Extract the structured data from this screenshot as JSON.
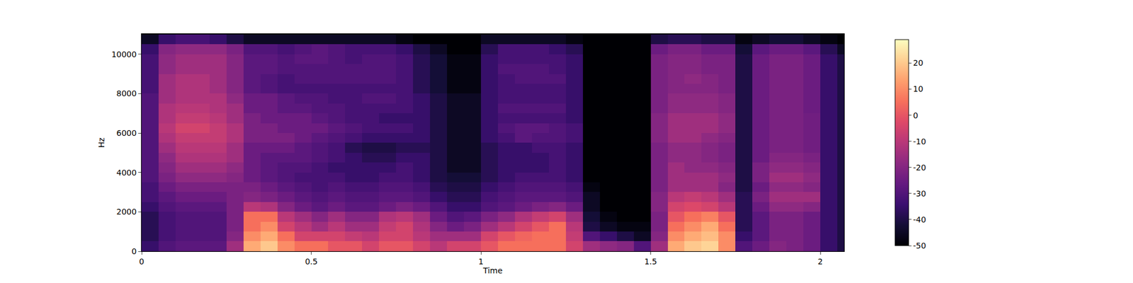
{
  "chart_data": {
    "type": "heatmap",
    "x_label": "Time",
    "y_label": "Hz",
    "xlim": [
      0,
      2.07
    ],
    "ylim": [
      0,
      11025
    ],
    "xticks": [
      0,
      0.5,
      1,
      1.5,
      2
    ],
    "yticks": [
      0,
      2000,
      4000,
      6000,
      8000,
      10000
    ],
    "colorbar": {
      "range": [
        -50,
        29
      ],
      "ticks": [
        -50,
        -40,
        -30,
        -20,
        -10,
        0,
        10,
        20
      ]
    },
    "x": [
      0.025,
      0.075,
      0.125,
      0.175,
      0.225,
      0.275,
      0.325,
      0.375,
      0.425,
      0.475,
      0.525,
      0.575,
      0.625,
      0.675,
      0.725,
      0.775,
      0.825,
      0.875,
      0.925,
      0.975,
      1.025,
      1.075,
      1.125,
      1.175,
      1.225,
      1.275,
      1.325,
      1.375,
      1.425,
      1.475,
      1.525,
      1.575,
      1.625,
      1.675,
      1.725,
      1.775,
      1.825,
      1.875,
      1.925,
      1.975,
      2.025,
      2.075
    ],
    "y": [
      250,
      750,
      1250,
      1750,
      2250,
      2750,
      3250,
      3750,
      4250,
      4750,
      5250,
      5750,
      6250,
      6750,
      7250,
      7750,
      8250,
      8750,
      9250,
      9750,
      10250,
      10750
    ],
    "z": [
      [
        -35,
        -30,
        -28,
        -28,
        -28,
        -15,
        15,
        20,
        10,
        5,
        5,
        0,
        0,
        -5,
        0,
        0,
        -5,
        -10,
        -5,
        -5,
        0,
        5,
        5,
        5,
        5,
        -5,
        -15,
        -18,
        -20,
        -30,
        -15,
        15,
        20,
        22,
        10,
        -30,
        -25,
        -20,
        -22,
        -25,
        -35,
        -40
      ],
      [
        -38,
        -32,
        -30,
        -30,
        -30,
        -20,
        10,
        15,
        5,
        -5,
        -5,
        -5,
        -8,
        -10,
        -5,
        -5,
        -10,
        -15,
        -15,
        -15,
        -5,
        0,
        3,
        5,
        5,
        -8,
        -30,
        -35,
        -40,
        -45,
        -20,
        10,
        15,
        18,
        10,
        -35,
        -28,
        -22,
        -22,
        -25,
        -35,
        -40
      ],
      [
        -38,
        -32,
        -30,
        -30,
        -30,
        -22,
        5,
        10,
        -5,
        -10,
        -15,
        -10,
        -15,
        -15,
        -8,
        -5,
        -12,
        -20,
        -25,
        -22,
        -15,
        -10,
        -5,
        0,
        5,
        -10,
        -40,
        -45,
        -48,
        -48,
        -22,
        5,
        10,
        15,
        5,
        -38,
        -28,
        -22,
        -22,
        -25,
        -35,
        -40
      ],
      [
        -38,
        -32,
        -30,
        -30,
        -30,
        -22,
        5,
        5,
        -10,
        -15,
        -20,
        -15,
        -20,
        -20,
        -12,
        -10,
        -15,
        -25,
        -30,
        -28,
        -22,
        -18,
        -12,
        -8,
        -5,
        -15,
        -42,
        -48,
        -50,
        -50,
        -22,
        0,
        5,
        8,
        0,
        -38,
        -28,
        -22,
        -22,
        -25,
        -35,
        -40
      ],
      [
        -35,
        -30,
        -28,
        -28,
        -28,
        -22,
        -10,
        -12,
        -20,
        -25,
        -28,
        -25,
        -28,
        -28,
        -25,
        -22,
        -25,
        -30,
        -35,
        -35,
        -30,
        -28,
        -25,
        -22,
        -20,
        -25,
        -45,
        -50,
        -50,
        -50,
        -20,
        -5,
        -3,
        -5,
        -10,
        -38,
        -25,
        -18,
        -18,
        -20,
        -35,
        -40
      ],
      [
        -32,
        -28,
        -25,
        -25,
        -25,
        -22,
        -20,
        -22,
        -25,
        -28,
        -30,
        -28,
        -30,
        -30,
        -28,
        -28,
        -30,
        -35,
        -38,
        -38,
        -32,
        -30,
        -28,
        -28,
        -28,
        -30,
        -45,
        -50,
        -50,
        -50,
        -20,
        -10,
        -8,
        -10,
        -15,
        -38,
        -22,
        -15,
        -15,
        -15,
        -35,
        -40
      ],
      [
        -32,
        -25,
        -22,
        -22,
        -22,
        -22,
        -22,
        -25,
        -28,
        -30,
        -32,
        -30,
        -32,
        -32,
        -30,
        -30,
        -32,
        -38,
        -40,
        -40,
        -35,
        -32,
        -30,
        -30,
        -30,
        -32,
        -48,
        -50,
        -50,
        -50,
        -22,
        -15,
        -15,
        -15,
        -20,
        -40,
        -25,
        -18,
        -18,
        -20,
        -35,
        -40
      ],
      [
        -30,
        -22,
        -18,
        -18,
        -18,
        -20,
        -25,
        -28,
        -30,
        -32,
        -32,
        -32,
        -35,
        -35,
        -32,
        -32,
        -35,
        -40,
        -42,
        -42,
        -38,
        -35,
        -32,
        -32,
        -32,
        -35,
        -50,
        -50,
        -50,
        -50,
        -22,
        -15,
        -15,
        -15,
        -18,
        -40,
        -22,
        -15,
        -15,
        -18,
        -35,
        -40
      ],
      [
        -30,
        -20,
        -15,
        -15,
        -15,
        -18,
        -25,
        -28,
        -30,
        -30,
        -32,
        -35,
        -35,
        -35,
        -35,
        -32,
        -35,
        -40,
        -45,
        -45,
        -38,
        -35,
        -35,
        -35,
        -32,
        -35,
        -50,
        -50,
        -50,
        -50,
        -22,
        -15,
        -18,
        -18,
        -20,
        -40,
        -22,
        -18,
        -18,
        -20,
        -35,
        -40
      ],
      [
        -30,
        -18,
        -12,
        -12,
        -12,
        -15,
        -25,
        -28,
        -28,
        -28,
        -30,
        -32,
        -35,
        -38,
        -38,
        -35,
        -35,
        -40,
        -45,
        -45,
        -38,
        -35,
        -35,
        -35,
        -32,
        -35,
        -50,
        -50,
        -50,
        -50,
        -22,
        -18,
        -18,
        -20,
        -22,
        -40,
        -25,
        -20,
        -20,
        -22,
        -35,
        -40
      ],
      [
        -30,
        -15,
        -10,
        -10,
        -10,
        -15,
        -25,
        -25,
        -25,
        -28,
        -30,
        -32,
        -38,
        -40,
        -40,
        -38,
        -38,
        -40,
        -45,
        -45,
        -38,
        -35,
        -35,
        -32,
        -32,
        -35,
        -50,
        -50,
        -50,
        -50,
        -22,
        -18,
        -18,
        -20,
        -22,
        -40,
        -25,
        -22,
        -22,
        -24,
        -35,
        -40
      ],
      [
        -30,
        -12,
        -8,
        -8,
        -8,
        -12,
        -22,
        -22,
        -22,
        -25,
        -28,
        -30,
        -32,
        -35,
        -35,
        -35,
        -35,
        -40,
        -45,
        -45,
        -35,
        -32,
        -28,
        -30,
        -30,
        -32,
        -50,
        -50,
        -50,
        -50,
        -20,
        -15,
        -15,
        -18,
        -20,
        -40,
        -25,
        -22,
        -22,
        -24,
        -35,
        -40
      ],
      [
        -30,
        -10,
        -5,
        -5,
        -8,
        -12,
        -22,
        -22,
        -25,
        -25,
        -25,
        -28,
        -30,
        -32,
        -32,
        -32,
        -35,
        -40,
        -45,
        -45,
        -35,
        -30,
        -28,
        -28,
        -30,
        -32,
        -50,
        -50,
        -50,
        -50,
        -20,
        -15,
        -15,
        -15,
        -18,
        -40,
        -25,
        -22,
        -22,
        -24,
        -35,
        -40
      ],
      [
        -30,
        -12,
        -8,
        -8,
        -10,
        -15,
        -22,
        -25,
        -25,
        -25,
        -28,
        -30,
        -32,
        -32,
        -35,
        -35,
        -35,
        -40,
        -45,
        -45,
        -35,
        -32,
        -32,
        -32,
        -32,
        -35,
        -50,
        -50,
        -50,
        -50,
        -20,
        -15,
        -15,
        -15,
        -18,
        -40,
        -25,
        -22,
        -22,
        -24,
        -35,
        -40
      ],
      [
        -30,
        -12,
        -10,
        -10,
        -12,
        -15,
        -25,
        -25,
        -28,
        -28,
        -30,
        -30,
        -32,
        -32,
        -32,
        -32,
        -35,
        -40,
        -45,
        -45,
        -35,
        -30,
        -30,
        -30,
        -30,
        -35,
        -50,
        -50,
        -50,
        -50,
        -22,
        -18,
        -18,
        -18,
        -20,
        -40,
        -25,
        -22,
        -22,
        -25,
        -35,
        -40
      ],
      [
        -30,
        -15,
        -12,
        -12,
        -12,
        -18,
        -25,
        -25,
        -28,
        -30,
        -30,
        -32,
        -32,
        -30,
        -30,
        -32,
        -35,
        -40,
        -45,
        -45,
        -35,
        -32,
        -32,
        -32,
        -32,
        -35,
        -50,
        -50,
        -50,
        -50,
        -22,
        -18,
        -18,
        -18,
        -20,
        -40,
        -25,
        -22,
        -22,
        -25,
        -35,
        -40
      ],
      [
        -32,
        -15,
        -12,
        -12,
        -15,
        -20,
        -28,
        -30,
        -32,
        -32,
        -32,
        -32,
        -32,
        -32,
        -32,
        -32,
        -38,
        -42,
        -48,
        -48,
        -35,
        -32,
        -32,
        -32,
        -32,
        -35,
        -50,
        -50,
        -50,
        -50,
        -22,
        -20,
        -20,
        -20,
        -22,
        -40,
        -25,
        -22,
        -22,
        -25,
        -35,
        -40
      ],
      [
        -32,
        -15,
        -12,
        -12,
        -15,
        -20,
        -28,
        -30,
        -32,
        -30,
        -30,
        -30,
        -30,
        -30,
        -30,
        -32,
        -38,
        -42,
        -48,
        -48,
        -35,
        -32,
        -30,
        -30,
        -30,
        -35,
        -50,
        -50,
        -50,
        -50,
        -22,
        -20,
        -18,
        -20,
        -22,
        -40,
        -25,
        -22,
        -22,
        -25,
        -35,
        -40
      ],
      [
        -32,
        -18,
        -15,
        -15,
        -15,
        -20,
        -28,
        -28,
        -30,
        -30,
        -30,
        -30,
        -30,
        -30,
        -30,
        -32,
        -38,
        -42,
        -48,
        -48,
        -35,
        -30,
        -30,
        -30,
        -32,
        -35,
        -50,
        -50,
        -50,
        -50,
        -22,
        -20,
        -20,
        -22,
        -22,
        -40,
        -25,
        -22,
        -22,
        -25,
        -35,
        -40
      ],
      [
        -32,
        -18,
        -15,
        -15,
        -15,
        -20,
        -28,
        -28,
        -30,
        -28,
        -28,
        -30,
        -32,
        -30,
        -30,
        -32,
        -38,
        -42,
        -48,
        -48,
        -35,
        -32,
        -32,
        -32,
        -32,
        -35,
        -50,
        -50,
        -50,
        -50,
        -22,
        -20,
        -20,
        -22,
        -22,
        -40,
        -25,
        -22,
        -22,
        -25,
        -35,
        -40
      ],
      [
        -35,
        -20,
        -18,
        -18,
        -18,
        -22,
        -30,
        -30,
        -32,
        -30,
        -28,
        -30,
        -32,
        -32,
        -32,
        -35,
        -40,
        -45,
        -50,
        -50,
        -38,
        -32,
        -32,
        -32,
        -35,
        -38,
        -50,
        -50,
        -50,
        -50,
        -25,
        -22,
        -22,
        -25,
        -25,
        -42,
        -28,
        -25,
        -25,
        -28,
        -38,
        -45
      ],
      [
        -45,
        -35,
        -32,
        -32,
        -35,
        -40,
        -45,
        -45,
        -45,
        -45,
        -45,
        -45,
        -45,
        -45,
        -45,
        -48,
        -50,
        -50,
        -50,
        -50,
        -45,
        -45,
        -45,
        -45,
        -45,
        -48,
        -50,
        -50,
        -50,
        -50,
        -40,
        -38,
        -38,
        -40,
        -40,
        -48,
        -45,
        -42,
        -42,
        -45,
        -48,
        -50
      ]
    ]
  }
}
